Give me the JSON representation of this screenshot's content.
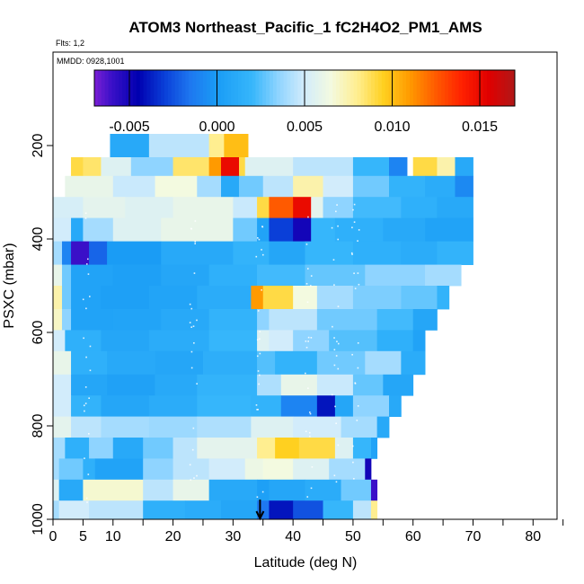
{
  "chart_data": {
    "type": "heatmap",
    "title": "ATOM3 Northeast_Pacific_1 fC2H4O2_PM1_AMS",
    "flights_label": "Flts: 1,2",
    "dates_label": "MMDD: 0928,1001",
    "xlabel": "Latitude (deg N)",
    "ylabel": "PSXC (mbar)",
    "xlim": [
      0,
      84
    ],
    "ylim": [
      1000,
      0
    ],
    "x_ticks": [
      0,
      5,
      10,
      20,
      30,
      40,
      50,
      60,
      70,
      80
    ],
    "x_minor_ticks": [
      15,
      25,
      35,
      45,
      55,
      65,
      75,
      85
    ],
    "y_ticks": [
      200,
      400,
      600,
      800,
      1000
    ],
    "marker_latitude": 34.5,
    "colorbar": {
      "range": [
        -0.007,
        0.017
      ],
      "ticks": [
        -0.005,
        0.0,
        0.005,
        0.01,
        0.015
      ],
      "tick_labels": [
        "-0.005",
        "0.000",
        "0.005",
        "0.010",
        "0.015"
      ],
      "stops": [
        [
          -0.007,
          "#7a1fd4"
        ],
        [
          -0.006,
          "#3a10c8"
        ],
        [
          -0.0045,
          "#0000b0"
        ],
        [
          -0.003,
          "#0a3fd8"
        ],
        [
          -0.0015,
          "#1e78f0"
        ],
        [
          0.0,
          "#1a9cf5"
        ],
        [
          0.002,
          "#36b6fb"
        ],
        [
          0.0035,
          "#8fd4ff"
        ],
        [
          0.005,
          "#d2ecfb"
        ],
        [
          0.0065,
          "#f3fae0"
        ],
        [
          0.008,
          "#ffee90"
        ],
        [
          0.0095,
          "#ffd020"
        ],
        [
          0.011,
          "#ff9a00"
        ],
        [
          0.0125,
          "#ff5a00"
        ],
        [
          0.014,
          "#ff2000"
        ],
        [
          0.0155,
          "#e00000"
        ],
        [
          0.017,
          "#b01818"
        ]
      ]
    },
    "rows": [
      {
        "p": [
          175,
          225
        ],
        "segments": [
          [
            9.5,
            16,
            0.001
          ],
          [
            16,
            26,
            0.0045
          ],
          [
            26,
            28.5,
            0.008
          ],
          [
            28.5,
            32.5,
            0.01
          ],
          [
            32.5,
            60,
            null
          ]
        ]
      },
      {
        "p": [
          225,
          265
        ],
        "segments": [
          [
            3,
            5,
            0.009
          ],
          [
            5,
            8,
            0.0085
          ],
          [
            8,
            13,
            0.0055
          ],
          [
            13,
            20,
            0.0035
          ],
          [
            20,
            26,
            0.0085
          ],
          [
            26,
            28,
            0.011
          ],
          [
            28,
            31,
            0.015
          ],
          [
            31,
            32,
            0.009
          ],
          [
            32,
            40,
            0.0055
          ],
          [
            40,
            50,
            0.0045
          ],
          [
            50,
            56,
            0.002
          ],
          [
            56,
            59,
            -0.001
          ],
          [
            59,
            60,
            null
          ],
          [
            60,
            64,
            0.009
          ],
          [
            64,
            67,
            0.0075
          ],
          [
            67,
            70,
            0.001
          ]
        ]
      },
      {
        "p": [
          265,
          310
        ],
        "segments": [
          [
            2,
            10,
            0.006
          ],
          [
            10,
            17,
            0.0048
          ],
          [
            17,
            24,
            0.0065
          ],
          [
            24,
            28,
            0.004
          ],
          [
            28,
            31,
            0.001
          ],
          [
            31,
            35,
            0.003
          ],
          [
            35,
            40,
            0.0045
          ],
          [
            40,
            45,
            0.0075
          ],
          [
            45,
            50,
            0.005
          ],
          [
            50,
            56,
            0.003
          ],
          [
            56,
            62,
            0.0018
          ],
          [
            62,
            67,
            0.0012
          ],
          [
            67,
            70,
            -0.0008
          ]
        ]
      },
      {
        "p": [
          310,
          355
        ],
        "segments": [
          [
            0,
            5,
            0.0052
          ],
          [
            5,
            12,
            0.0058
          ],
          [
            12,
            20,
            0.0055
          ],
          [
            20,
            30,
            0.006
          ],
          [
            30,
            34,
            0.0048
          ],
          [
            34,
            36,
            0.009
          ],
          [
            36,
            40,
            0.0125
          ],
          [
            40,
            43,
            0.015
          ],
          [
            43,
            45,
            0.0058
          ],
          [
            45,
            50,
            0.0035
          ],
          [
            50,
            58,
            0.0022
          ],
          [
            58,
            64,
            0.0015
          ],
          [
            64,
            70,
            0.001
          ]
        ]
      },
      {
        "p": [
          355,
          405
        ],
        "segments": [
          [
            0,
            3,
            0.005
          ],
          [
            3,
            5,
            0.001
          ],
          [
            5,
            10,
            0.004
          ],
          [
            10,
            18,
            0.0055
          ],
          [
            18,
            30,
            0.006
          ],
          [
            30,
            34,
            0.003
          ],
          [
            34,
            36,
            0.0005
          ],
          [
            36,
            40,
            -0.003
          ],
          [
            40,
            43,
            -0.005
          ],
          [
            43,
            47,
            0.002
          ],
          [
            47,
            55,
            0.0015
          ],
          [
            55,
            62,
            0.001
          ],
          [
            62,
            70,
            0.0005
          ]
        ]
      },
      {
        "p": [
          405,
          455
        ],
        "segments": [
          [
            0,
            1.5,
            0.004
          ],
          [
            1.5,
            3,
            -0.001
          ],
          [
            3,
            6,
            -0.006
          ],
          [
            6,
            9,
            -0.002
          ],
          [
            9,
            18,
            0.0
          ],
          [
            18,
            30,
            0.001
          ],
          [
            30,
            36,
            0.0018
          ],
          [
            36,
            42,
            0.0008
          ],
          [
            42,
            50,
            0.002
          ],
          [
            50,
            58,
            0.0015
          ],
          [
            58,
            64,
            0.0012
          ],
          [
            64,
            70,
            0.0018
          ]
        ]
      },
      {
        "p": [
          455,
          500
        ],
        "segments": [
          [
            0,
            1.5,
            0.006
          ],
          [
            1.5,
            3,
            0.003
          ],
          [
            3,
            10,
            0.0005
          ],
          [
            10,
            18,
            0.0003
          ],
          [
            18,
            26,
            0.0008
          ],
          [
            26,
            34,
            0.0015
          ],
          [
            34,
            42,
            0.0022
          ],
          [
            42,
            52,
            0.0028
          ],
          [
            52,
            62,
            0.0035
          ],
          [
            62,
            68,
            0.004
          ]
        ]
      },
      {
        "p": [
          500,
          550
        ],
        "segments": [
          [
            0,
            1.5,
            0.0075
          ],
          [
            1.5,
            3,
            0.003
          ],
          [
            3,
            8,
            0.0005
          ],
          [
            8,
            16,
            0.0003
          ],
          [
            16,
            24,
            0.0006
          ],
          [
            24,
            33,
            0.0012
          ],
          [
            33,
            35,
            0.011
          ],
          [
            35,
            40,
            0.009
          ],
          [
            40,
            44,
            0.0065
          ],
          [
            44,
            50,
            0.004
          ],
          [
            50,
            58,
            0.0032
          ],
          [
            58,
            64,
            0.0028
          ],
          [
            64,
            66,
            0.0018
          ]
        ]
      },
      {
        "p": [
          550,
          595
        ],
        "segments": [
          [
            0,
            1.5,
            0.007
          ],
          [
            1.5,
            3,
            0.0035
          ],
          [
            3,
            10,
            0.0005
          ],
          [
            10,
            18,
            0.0006
          ],
          [
            18,
            26,
            0.001
          ],
          [
            26,
            34,
            0.0018
          ],
          [
            34,
            36,
            0.0035
          ],
          [
            36,
            44,
            0.0045
          ],
          [
            44,
            54,
            0.003
          ],
          [
            54,
            60,
            0.0022
          ],
          [
            60,
            64,
            0.0008
          ]
        ]
      },
      {
        "p": [
          595,
          640
        ],
        "segments": [
          [
            0,
            2,
            0.005
          ],
          [
            2,
            8,
            0.0015
          ],
          [
            8,
            16,
            0.0008
          ],
          [
            16,
            26,
            0.0012
          ],
          [
            26,
            34,
            0.002
          ],
          [
            34,
            36,
            0.0055
          ],
          [
            36,
            40,
            0.005
          ],
          [
            40,
            46,
            0.0035
          ],
          [
            46,
            54,
            0.0025
          ],
          [
            54,
            60,
            0.0015
          ],
          [
            60,
            62,
            0.0005
          ]
        ]
      },
      {
        "p": [
          640,
          690
        ],
        "segments": [
          [
            0,
            3,
            0.006
          ],
          [
            3,
            9,
            0.0015
          ],
          [
            9,
            17,
            0.001
          ],
          [
            17,
            25,
            0.0008
          ],
          [
            25,
            34,
            0.0014
          ],
          [
            34,
            37,
            0.0025
          ],
          [
            37,
            44,
            0.0018
          ],
          [
            44,
            52,
            0.003
          ],
          [
            52,
            58,
            0.004
          ],
          [
            58,
            62,
            0.0012
          ]
        ]
      },
      {
        "p": [
          690,
          735
        ],
        "segments": [
          [
            0,
            3,
            0.005
          ],
          [
            3,
            9,
            0.0008
          ],
          [
            9,
            17,
            0.0004
          ],
          [
            17,
            24,
            0.001
          ],
          [
            24,
            34,
            0.0018
          ],
          [
            34,
            38,
            0.0042
          ],
          [
            38,
            44,
            0.006
          ],
          [
            44,
            50,
            0.0048
          ],
          [
            50,
            55,
            0.0028
          ],
          [
            55,
            60,
            0.0008
          ]
        ]
      },
      {
        "p": [
          735,
          780
        ],
        "segments": [
          [
            0,
            3,
            0.005
          ],
          [
            3,
            8,
            0.0018
          ],
          [
            8,
            16,
            0.0008
          ],
          [
            16,
            24,
            0.0012
          ],
          [
            24,
            33,
            0.002
          ],
          [
            33,
            38,
            0.0018
          ],
          [
            38,
            44,
            -0.001
          ],
          [
            44,
            47,
            -0.004
          ],
          [
            47,
            50,
            0.0008
          ],
          [
            50,
            56,
            0.0035
          ],
          [
            56,
            58,
            0.001
          ]
        ]
      },
      {
        "p": [
          780,
          825
        ],
        "segments": [
          [
            0,
            3,
            0.0058
          ],
          [
            3,
            8,
            0.0045
          ],
          [
            8,
            16,
            0.004
          ],
          [
            16,
            24,
            0.0038
          ],
          [
            24,
            33,
            0.0042
          ],
          [
            33,
            40,
            0.0055
          ],
          [
            40,
            48,
            0.005
          ],
          [
            48,
            54,
            0.004
          ],
          [
            54,
            56,
            0.001
          ]
        ]
      },
      {
        "p": [
          825,
          870
        ],
        "segments": [
          [
            0,
            2,
            0.004
          ],
          [
            2,
            6,
            0.0015
          ],
          [
            6,
            10,
            0.0035
          ],
          [
            10,
            15,
            0.001
          ],
          [
            15,
            20,
            0.003
          ],
          [
            20,
            24,
            0.0045
          ],
          [
            24,
            34,
            0.0058
          ],
          [
            34,
            37,
            0.008
          ],
          [
            37,
            41,
            0.0095
          ],
          [
            41,
            47,
            0.009
          ],
          [
            47,
            50,
            0.0055
          ],
          [
            50,
            53,
            0.002
          ],
          [
            53,
            54,
            0.0005
          ]
        ]
      },
      {
        "p": [
          870,
          915
        ],
        "segments": [
          [
            0,
            1,
            0.004
          ],
          [
            1,
            5,
            0.003
          ],
          [
            5,
            7,
            0.0015
          ],
          [
            7,
            15,
            0.0005
          ],
          [
            15,
            20,
            0.0035
          ],
          [
            20,
            26,
            0.0045
          ],
          [
            26,
            32,
            0.005
          ],
          [
            32,
            35,
            0.0062
          ],
          [
            35,
            40,
            0.0065
          ],
          [
            40,
            46,
            0.0055
          ],
          [
            46,
            52,
            0.004
          ],
          [
            52,
            53,
            -0.005
          ]
        ]
      },
      {
        "p": [
          915,
          960
        ],
        "segments": [
          [
            0,
            1,
            0.0055
          ],
          [
            1,
            5,
            0.001
          ],
          [
            5,
            15,
            0.0068
          ],
          [
            15,
            20,
            0.0045
          ],
          [
            20,
            26,
            0.006
          ],
          [
            26,
            34,
            0.001
          ],
          [
            34,
            36,
            0.0003
          ],
          [
            36,
            42,
            0.0008
          ],
          [
            42,
            48,
            0.0012
          ],
          [
            48,
            53,
            0.003
          ],
          [
            53,
            54,
            -0.006
          ]
        ]
      },
      {
        "p": [
          960,
          1000
        ],
        "segments": [
          [
            0,
            1,
            0.004
          ],
          [
            1,
            6,
            0.005
          ],
          [
            6,
            15,
            0.0045
          ],
          [
            15,
            22,
            0.0015
          ],
          [
            22,
            28,
            0.0012
          ],
          [
            28,
            34,
            0.0008
          ],
          [
            34,
            36,
            -0.0015
          ],
          [
            36,
            40,
            -0.004
          ],
          [
            40,
            45,
            -0.0025
          ],
          [
            45,
            50,
            0.002
          ],
          [
            50,
            53,
            0.0045
          ],
          [
            53,
            54,
            0.008
          ]
        ]
      }
    ]
  }
}
